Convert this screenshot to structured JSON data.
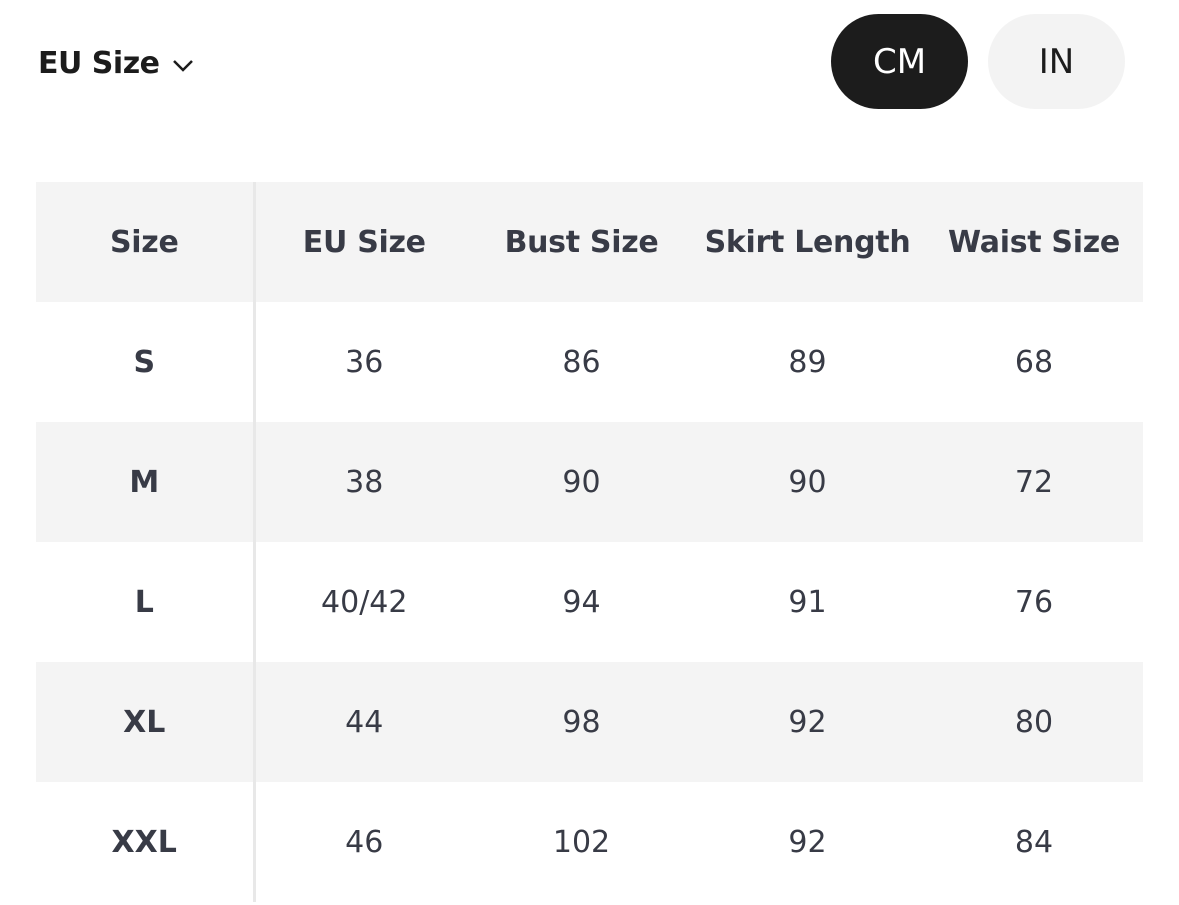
{
  "size_system": {
    "label": "EU Size",
    "icon": "chevron-down-icon"
  },
  "units": {
    "options": [
      "CM",
      "IN"
    ],
    "selected": "CM"
  },
  "colors": {
    "active_bg": "#1c1c1c",
    "inactive_bg": "#f3f3f3",
    "row_alt": "#f4f4f4",
    "text": "#383b46"
  },
  "table": {
    "headers": [
      "Size",
      "EU Size",
      "Bust Size",
      "Skirt Length",
      "Waist Size"
    ],
    "rows": [
      [
        "S",
        "36",
        "86",
        "89",
        "68"
      ],
      [
        "M",
        "38",
        "90",
        "90",
        "72"
      ],
      [
        "L",
        "40/42",
        "94",
        "91",
        "76"
      ],
      [
        "XL",
        "44",
        "98",
        "92",
        "80"
      ],
      [
        "XXL",
        "46",
        "102",
        "92",
        "84"
      ]
    ]
  }
}
